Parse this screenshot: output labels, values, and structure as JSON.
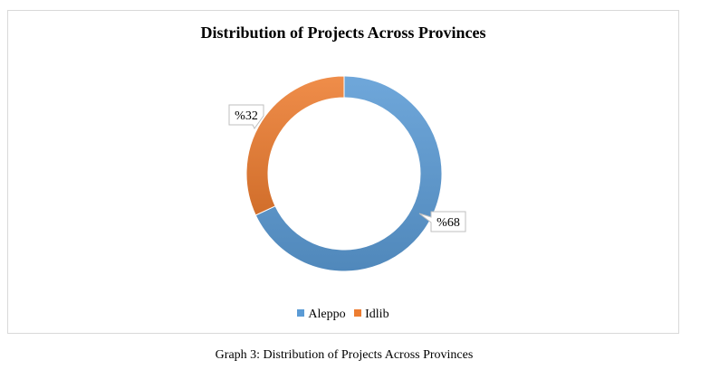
{
  "chart_data": {
    "type": "pie",
    "title": "Distribution of Projects Across Provinces",
    "categories": [
      "Aleppo",
      "Idlib"
    ],
    "values": [
      68,
      32
    ],
    "data_labels": [
      "%68",
      "%32"
    ],
    "colors": [
      "#5b9bd5",
      "#ed7d31"
    ],
    "legend_position": "bottom"
  },
  "caption": "Graph 3: Distribution of Projects Across Provinces"
}
